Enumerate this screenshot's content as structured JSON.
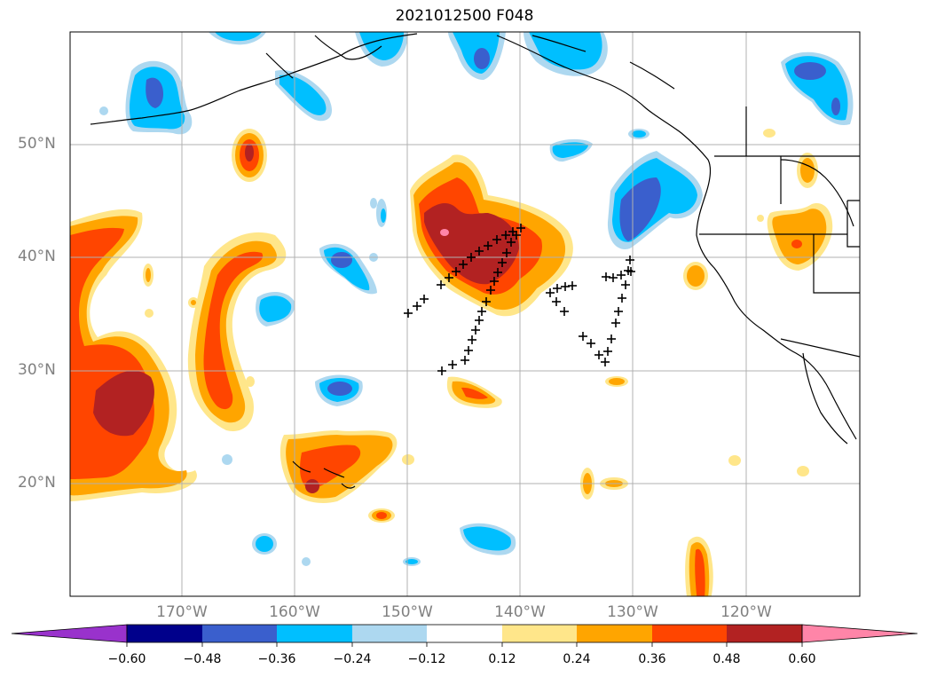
{
  "title": "2021012500 F048",
  "map": {
    "projection": "lat-lon",
    "grid": true,
    "lat_labels": [
      "50°N",
      "40°N",
      "30°N",
      "20°N"
    ],
    "lon_labels": [
      "170°W",
      "160°W",
      "150°W",
      "140°W",
      "130°W",
      "120°W"
    ]
  },
  "colorbar": {
    "extend": "both",
    "ticks": [
      "−0.60",
      "−0.48",
      "−0.36",
      "−0.24",
      "−0.12",
      "0.12",
      "0.24",
      "0.36",
      "0.48",
      "0.60"
    ],
    "colors": [
      "#9932cc",
      "#00008b",
      "#3a5fcd",
      "#00bfff",
      "#add8f0",
      "#ffffff",
      "#ffe68a",
      "#ffa500",
      "#ff4500",
      "#b22222",
      "#ff85a8"
    ]
  },
  "colors": {
    "frame": "#000000",
    "grid": "#b0b0b0",
    "coast": "#000000",
    "marker": "#000000"
  }
}
